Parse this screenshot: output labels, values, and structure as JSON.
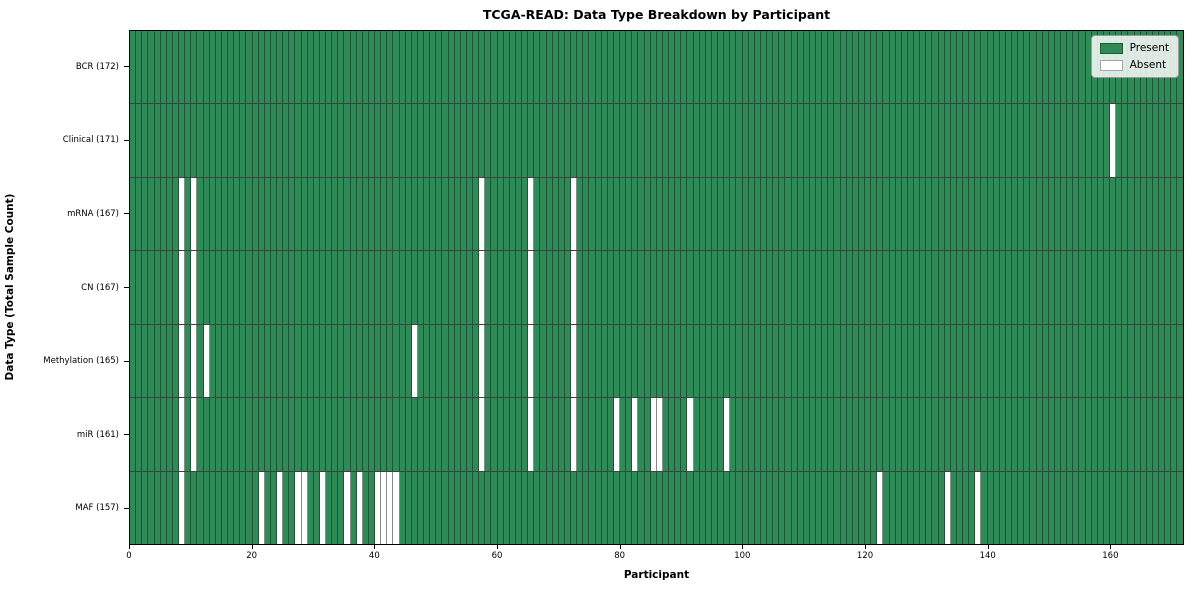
{
  "title": "TCGA-READ: Data Type Breakdown by Participant",
  "xlabel": "Participant",
  "ylabel": "Data Type (Total Sample Count)",
  "legend": {
    "present_label": "Present",
    "absent_label": "Absent"
  },
  "colors": {
    "present": "#2e8b57",
    "absent": "#ffffff",
    "cell_grid_line": "rgba(10,30,18,0.50)",
    "row_separator": "rgba(0,0,0,0.75)"
  },
  "chart_data": {
    "type": "heatmap",
    "title": "TCGA-READ: Data Type Breakdown by Participant",
    "xlabel": "Participant",
    "ylabel": "Data Type (Total Sample Count)",
    "x_axis_range": [
      0,
      172
    ],
    "n_participants": 172,
    "x_ticks": [
      0,
      20,
      40,
      60,
      80,
      100,
      120,
      140,
      160
    ],
    "legend_position": "upper right",
    "legend_entries": [
      "Present",
      "Absent"
    ],
    "rows": [
      {
        "data_type": "BCR",
        "label": "BCR (172)",
        "total_sample_count": 172,
        "absent_participants": []
      },
      {
        "data_type": "Clinical",
        "label": "Clinical (171)",
        "total_sample_count": 171,
        "absent_participants": [
          160
        ]
      },
      {
        "data_type": "mRNA",
        "label": "mRNA (167)",
        "total_sample_count": 167,
        "absent_participants": [
          8,
          10,
          57,
          65,
          72
        ]
      },
      {
        "data_type": "CN",
        "label": "CN (167)",
        "total_sample_count": 167,
        "absent_participants": [
          8,
          10,
          57,
          65,
          72
        ]
      },
      {
        "data_type": "Methylation",
        "label": "Methylation (165)",
        "total_sample_count": 165,
        "absent_participants": [
          8,
          10,
          12,
          46,
          57,
          65,
          72
        ]
      },
      {
        "data_type": "miR",
        "label": "miR (161)",
        "total_sample_count": 161,
        "absent_participants": [
          8,
          10,
          57,
          65,
          72,
          79,
          82,
          85,
          86,
          91,
          97
        ]
      },
      {
        "data_type": "MAF",
        "label": "MAF (157)",
        "total_sample_count": 157,
        "absent_participants": [
          8,
          21,
          24,
          27,
          28,
          31,
          35,
          37,
          40,
          41,
          42,
          43,
          122,
          133,
          138
        ]
      }
    ]
  }
}
